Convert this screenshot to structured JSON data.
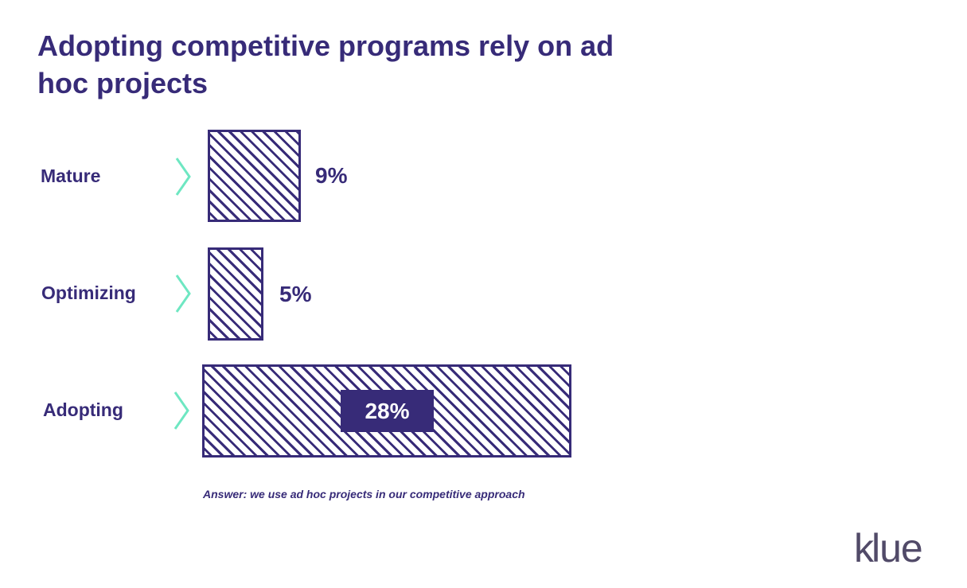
{
  "chart_data": {
    "type": "bar",
    "orientation": "horizontal",
    "title": "Adopting competitive programs rely on ad hoc projects",
    "categories": [
      "Mature",
      "Optimizing",
      "Adopting"
    ],
    "values": [
      9,
      5,
      28
    ],
    "value_labels": [
      "9%",
      "5%",
      "28%"
    ],
    "note": "Answer: we use ad hoc projects in our competitive approach",
    "grid": false,
    "colors": {
      "bar": "#372b78",
      "chevron": "#6ee7c2"
    }
  },
  "logo": "klue"
}
